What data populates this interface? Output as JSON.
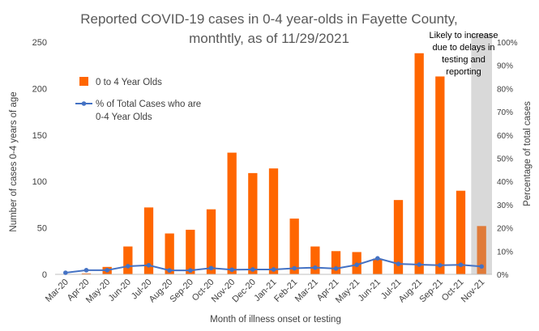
{
  "chart_data": {
    "type": "bar",
    "title": [
      "Reported COVID-19 cases in 0-4 year-olds in Fayette County,",
      "monthtly, as of 11/29/2021"
    ],
    "xlabel": "Month of illness onset or testing",
    "ylabel": "Number of cases 0-4 years of age",
    "y2label": "Percentage of total cases",
    "ylim": [
      0,
      250
    ],
    "y2lim": [
      0,
      100
    ],
    "yticks": [
      "0",
      "50",
      "100",
      "150",
      "200",
      "250"
    ],
    "y2ticks": [
      "0%",
      "10%",
      "20%",
      "30%",
      "40%",
      "50%",
      "60%",
      "70%",
      "80%",
      "90%",
      "100%"
    ],
    "grid": false,
    "categories": [
      "Mar-20",
      "Apr-20",
      "May-20",
      "Jun-20",
      "Jul-20",
      "Aug-20",
      "Sep-20",
      "Oct-20",
      "Nov-20",
      "Dec-20",
      "Jan-21",
      "Feb-21",
      "Mar-21",
      "Apr-21",
      "May-21",
      "Jun-21",
      "Jul-21",
      "Aug-21",
      "Sep-21",
      "Oct-21",
      "Nov-21"
    ],
    "series": [
      {
        "name": "0 to 4 Year Olds",
        "type": "bar",
        "axis": "left",
        "color": "#FF6600",
        "values": [
          0,
          1,
          8,
          30,
          72,
          44,
          48,
          70,
          131,
          109,
          114,
          60,
          30,
          25,
          24,
          17,
          80,
          238,
          213,
          90,
          52
        ]
      },
      {
        "name": "% of Total Cases who are 0-4 Year Olds",
        "type": "line",
        "axis": "right",
        "unit": "%",
        "color": "#4472C4",
        "values": [
          0.7,
          1.8,
          1.8,
          3.5,
          3.9,
          1.7,
          1.7,
          2.7,
          2.0,
          2.1,
          2.1,
          2.6,
          2.9,
          2.5,
          4.1,
          6.9,
          4.5,
          4.2,
          3.9,
          4.1,
          3.4
        ]
      }
    ],
    "highlight": {
      "category": "Nov-21",
      "shade_color": "#D9D9D9",
      "bar_color": "#E07B39",
      "note": [
        "Likely to increase",
        "due to delays in",
        "testing and",
        "reporting"
      ]
    },
    "legend": {
      "position": "left-inside",
      "items": [
        "0 to 4 Year Olds",
        "% of Total Cases who are",
        "0-4 Year Olds"
      ]
    }
  }
}
